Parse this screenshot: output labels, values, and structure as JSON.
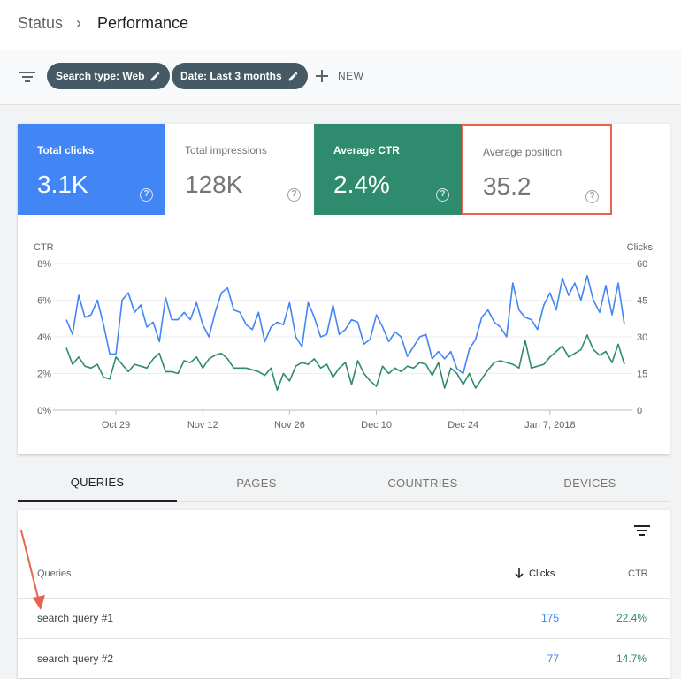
{
  "breadcrumb": {
    "root": "Status",
    "separator": "›",
    "current": "Performance"
  },
  "filters": {
    "chips": [
      {
        "label": "Search type: Web"
      },
      {
        "label": "Date: Last 3 months"
      }
    ],
    "new_label": "NEW"
  },
  "metrics": [
    {
      "label": "Total clicks",
      "value": "3.1K",
      "style": "blue"
    },
    {
      "label": "Total impressions",
      "value": "128K",
      "style": "white"
    },
    {
      "label": "Average CTR",
      "value": "2.4%",
      "style": "green"
    },
    {
      "label": "Average position",
      "value": "35.2",
      "style": "white-outlined"
    }
  ],
  "colors": {
    "clicks": "#4285f4",
    "ctr": "#2e8b6e",
    "highlight": "#e8634f"
  },
  "chart_data": {
    "type": "line",
    "ylabel_left": "CTR",
    "ylabel_right": "Clicks",
    "y_left_ticks": [
      "0%",
      "2%",
      "4%",
      "6%",
      "8%"
    ],
    "y_right_ticks": [
      "0",
      "15",
      "30",
      "45",
      "60"
    ],
    "y_left_range": [
      0,
      8
    ],
    "y_right_range": [
      0,
      60
    ],
    "x_ticks": [
      "Oct 29",
      "Nov 12",
      "Nov 26",
      "Dec 10",
      "Dec 24",
      "Jan 7, 2018"
    ],
    "x_tick_index": [
      8,
      22,
      36,
      50,
      64,
      78
    ],
    "grid": true,
    "series": [
      {
        "name": "Clicks",
        "axis": "right",
        "values": [
          37,
          31,
          47,
          38,
          39,
          45,
          35,
          23,
          23,
          45,
          48,
          40,
          43,
          34,
          36,
          28,
          46,
          37,
          37,
          40,
          37,
          44,
          35,
          30,
          40,
          48,
          50,
          41,
          40,
          35,
          33,
          40,
          28,
          34,
          36,
          35,
          44,
          30,
          26,
          44,
          38,
          30,
          31,
          43,
          31,
          33,
          37,
          36,
          27,
          29,
          39,
          34,
          28,
          32,
          30,
          22,
          26,
          30,
          31,
          21,
          24,
          21,
          24,
          17,
          15,
          25,
          29,
          38,
          41,
          36,
          34,
          30,
          52,
          41,
          38,
          37,
          33,
          43,
          48,
          41,
          54,
          47,
          52,
          45,
          55,
          45,
          40,
          51,
          39,
          52,
          35
        ]
      },
      {
        "name": "CTR",
        "axis": "left",
        "values": [
          3.4,
          2.5,
          2.9,
          2.4,
          2.3,
          2.5,
          1.8,
          1.7,
          2.9,
          2.5,
          2.1,
          2.5,
          2.4,
          2.3,
          2.8,
          3.1,
          2.1,
          2.1,
          2.0,
          2.7,
          2.6,
          2.9,
          2.3,
          2.8,
          3.0,
          3.1,
          2.8,
          2.3,
          2.3,
          2.3,
          2.2,
          2.1,
          1.9,
          2.3,
          1.1,
          2.0,
          1.6,
          2.4,
          2.6,
          2.5,
          2.8,
          2.3,
          2.5,
          1.8,
          2.3,
          2.6,
          1.4,
          2.7,
          2.0,
          1.6,
          1.3,
          2.4,
          2.0,
          2.3,
          2.1,
          2.4,
          2.3,
          2.6,
          2.5,
          1.9,
          2.6,
          1.2,
          2.3,
          2.0,
          1.4,
          2.0,
          1.2,
          1.7,
          2.2,
          2.6,
          2.7,
          2.6,
          2.5,
          2.3,
          3.8,
          2.3,
          2.4,
          2.5,
          2.9,
          3.2,
          3.5,
          2.9,
          3.1,
          3.3,
          4.1,
          3.3,
          3.0,
          3.2,
          2.6,
          3.6,
          2.5
        ]
      }
    ]
  },
  "tabs": [
    {
      "label": "QUERIES",
      "active": true
    },
    {
      "label": "PAGES",
      "active": false
    },
    {
      "label": "COUNTRIES",
      "active": false
    },
    {
      "label": "DEVICES",
      "active": false
    }
  ],
  "table": {
    "headers": {
      "query": "Queries",
      "clicks": "Clicks",
      "ctr": "CTR"
    },
    "rows": [
      {
        "query": "search query #1",
        "clicks": "175",
        "ctr": "22.4%"
      },
      {
        "query": "search query #2",
        "clicks": "77",
        "ctr": "14.7%"
      }
    ]
  }
}
